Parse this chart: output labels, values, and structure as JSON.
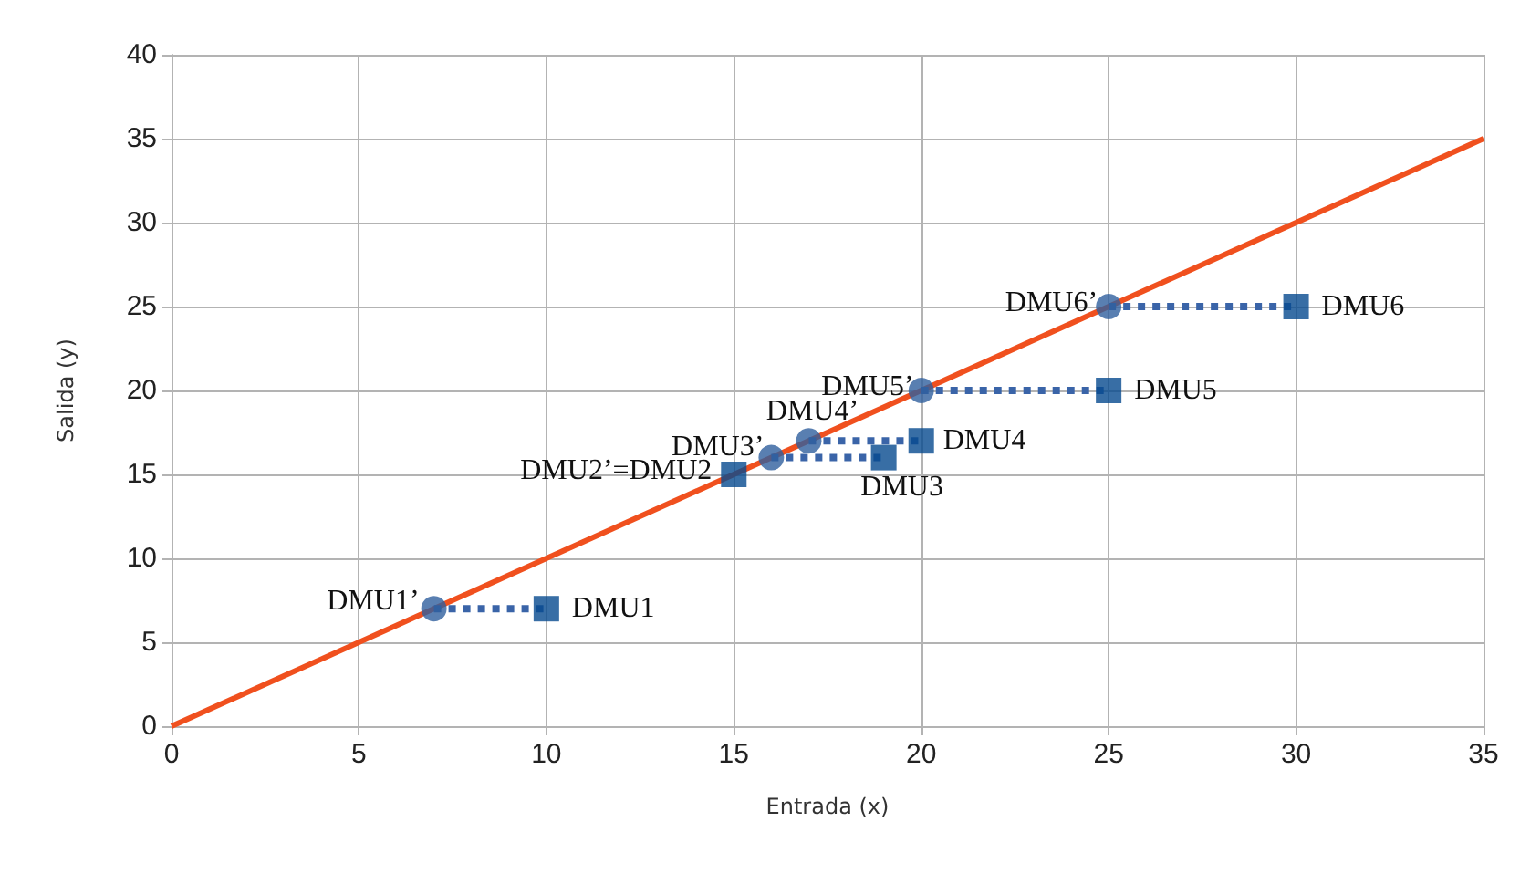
{
  "chart_data": {
    "type": "scatter",
    "xlabel": "Entrada (x)",
    "ylabel": "Salida (y)",
    "xlim": [
      0,
      35
    ],
    "xticks": [
      0,
      5,
      10,
      15,
      20,
      25,
      30,
      35
    ],
    "ylim": [
      0,
      40
    ],
    "yticks": [
      0,
      5,
      10,
      15,
      20,
      25,
      30,
      35,
      40
    ],
    "grid": true,
    "series": [
      {
        "type": "line",
        "color": "#f0501e",
        "marker": "none",
        "line_style": "solid",
        "x": [
          0,
          35
        ],
        "values": [
          0,
          35
        ]
      },
      {
        "type": "line",
        "color": "#3a64a8",
        "marker": "none",
        "line_style": "dotted",
        "x": [
          7,
          10
        ],
        "values": [
          7,
          7
        ]
      },
      {
        "type": "line",
        "color": "#3a64a8",
        "marker": "none",
        "line_style": "dotted",
        "x": [
          16,
          19
        ],
        "values": [
          16,
          16
        ]
      },
      {
        "type": "line",
        "color": "#3a64a8",
        "marker": "none",
        "line_style": "dotted",
        "x": [
          17,
          20
        ],
        "values": [
          17,
          17
        ]
      },
      {
        "type": "line",
        "color": "#3a64a8",
        "marker": "none",
        "line_style": "dotted",
        "x": [
          20,
          25
        ],
        "values": [
          20,
          20
        ]
      },
      {
        "type": "line",
        "color": "#3a64a8",
        "marker": "none",
        "line_style": "dotted",
        "x": [
          25,
          30
        ],
        "values": [
          25,
          25
        ]
      },
      {
        "type": "scatter",
        "color": "#2f5f9e",
        "marker": "circle",
        "x": [
          7,
          16,
          17,
          20,
          25
        ],
        "values": [
          7,
          16,
          17,
          20,
          25
        ]
      },
      {
        "type": "scatter",
        "color": "#064a8e",
        "marker": "square",
        "x": [
          10,
          15,
          19,
          20,
          25,
          30
        ],
        "values": [
          7,
          15,
          16,
          17,
          20,
          25
        ]
      }
    ],
    "annotations": [
      {
        "text": "DMU1’",
        "x": 7,
        "y": 7
      },
      {
        "text": "DMU1",
        "x": 10,
        "y": 7
      },
      {
        "text": "DMU2’=DMU2",
        "x": 15,
        "y": 15
      },
      {
        "text": "DMU3’",
        "x": 16,
        "y": 16
      },
      {
        "text": "DMU3",
        "x": 19,
        "y": 16
      },
      {
        "text": "DMU4’",
        "x": 17,
        "y": 17
      },
      {
        "text": "DMU4",
        "x": 20,
        "y": 17
      },
      {
        "text": "DMU5’",
        "x": 20,
        "y": 20
      },
      {
        "text": "DMU5",
        "x": 25,
        "y": 20
      },
      {
        "text": "DMU6’",
        "x": 25,
        "y": 25
      },
      {
        "text": "DMU6",
        "x": 30,
        "y": 25
      }
    ]
  }
}
